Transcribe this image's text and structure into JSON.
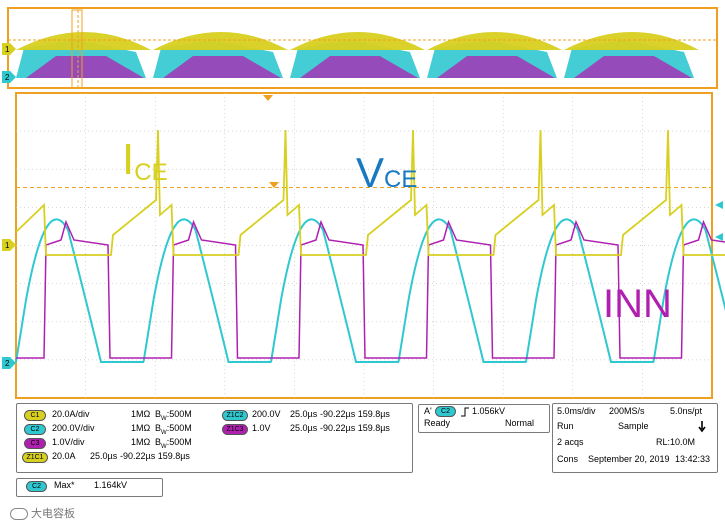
{
  "colors": {
    "ch1": "#d8d020",
    "ch2": "#30c8d0",
    "ch3": "#b020b0",
    "frame": "#f0a020",
    "background": "#ffffff",
    "grid": "#c8c8c8",
    "vce_label": "#1878c0"
  },
  "waveform_labels": {
    "ice_main": "I",
    "ice_sub": "CE",
    "vce_main": "V",
    "vce_sub": "CE",
    "inn": "INN"
  },
  "channel_markers": {
    "ch1": "1",
    "ch2": "2"
  },
  "trigger_level_fraction": 0.31,
  "channels": [
    {
      "badge": "C1",
      "scale": "20.0A/div",
      "impedance": "1MΩ",
      "bw_prefix": "B",
      "bw_sub": "W",
      "bw_value": ":500M",
      "color_key": "ch1"
    },
    {
      "badge": "C2",
      "scale": "200.0V/div",
      "impedance": "1MΩ",
      "bw_prefix": "B",
      "bw_sub": "W",
      "bw_value": ":500M",
      "color_key": "ch2"
    },
    {
      "badge": "C3",
      "scale": "1.0V/div",
      "impedance": "1MΩ",
      "bw_prefix": "B",
      "bw_sub": "W",
      "bw_value": ":500M",
      "color_key": "ch3"
    }
  ],
  "zoom_channels": [
    {
      "badge": "Z1C2",
      "scale": "200.0V",
      "time_div": "25.0µs",
      "range": "-90.22µs 159.8µs",
      "color_key": "ch2"
    },
    {
      "badge": "Z1C3",
      "scale": "1.0V",
      "time_div": "25.0µs",
      "range": "-90.22µs 159.8µs",
      "color_key": "ch3"
    },
    {
      "badge": "Z1C1",
      "scale": "20.0A",
      "time_div": "25.0µs",
      "range": "-90.22µs 159.8µs",
      "color_key": "ch1"
    }
  ],
  "trigger": {
    "a_label": "A'",
    "channel_badge": "C2",
    "slope_icon": "rising-edge-icon",
    "level": "1.056kV",
    "state": "Ready",
    "mode": "Normal"
  },
  "acquisition": {
    "time_div": "5.0ms/div",
    "sample_rate": "200MS/s",
    "resolution": "5.0ns/pt",
    "run_state": "Run",
    "sample_mode": "Sample",
    "acqs": "2 acqs",
    "record_length": "RL:10.0M",
    "cons": "Cons",
    "date": "September 20, 2019",
    "time": "13:42:33"
  },
  "measurement": {
    "badge": "C2",
    "name": "Max*",
    "value": "1.164kV"
  },
  "watermark": {
    "text": "大电容板"
  }
}
